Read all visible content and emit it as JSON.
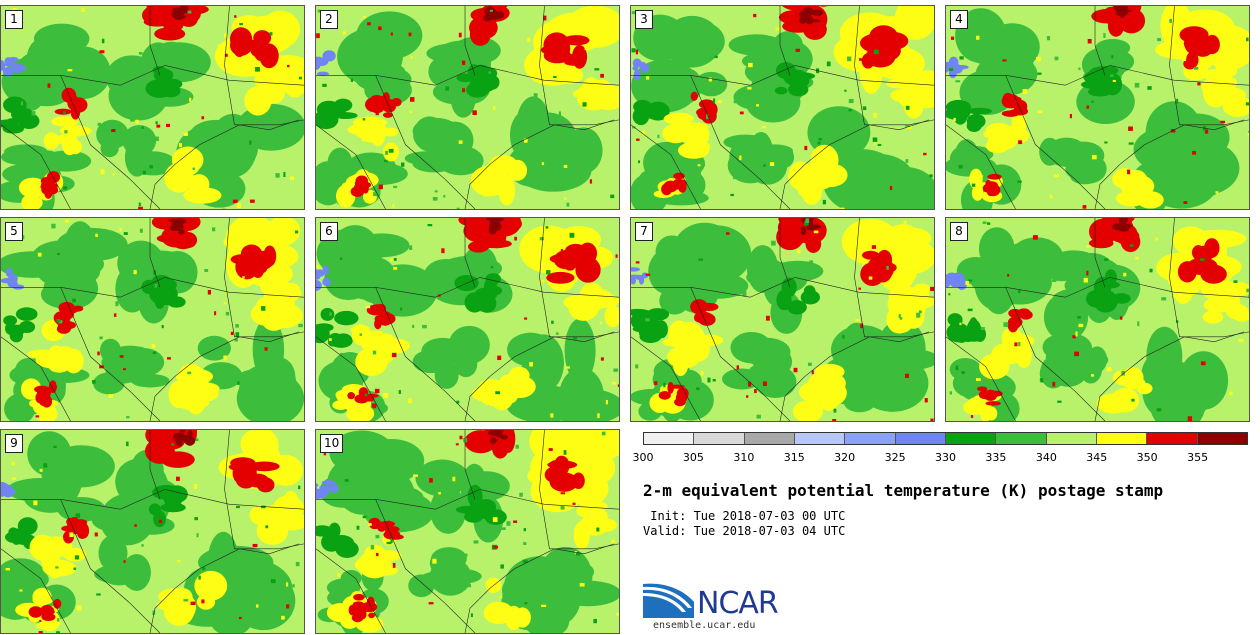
{
  "panels": [
    {
      "label": "1"
    },
    {
      "label": "2"
    },
    {
      "label": "3"
    },
    {
      "label": "4"
    },
    {
      "label": "5"
    },
    {
      "label": "6"
    },
    {
      "label": "7"
    },
    {
      "label": "8"
    },
    {
      "label": "9"
    },
    {
      "label": "10"
    }
  ],
  "colorbar": {
    "colors": [
      "#f0f0f0",
      "#d9d9d9",
      "#a8a8a8",
      "#b7c8f7",
      "#8aa2f5",
      "#6f86f2",
      "#08a212",
      "#3cbd3c",
      "#b8f26a",
      "#fefe14",
      "#e40000",
      "#8c0000"
    ],
    "ticks": [
      "300",
      "305",
      "310",
      "315",
      "320",
      "325",
      "330",
      "335",
      "340",
      "345",
      "350",
      "355"
    ]
  },
  "title": "2-m equivalent potential temperature (K) postage stamp",
  "init": " Init: Tue 2018-07-03 00 UTC",
  "valid": "Valid: Tue 2018-07-03 04 UTC",
  "logo": {
    "text": "NCAR",
    "url": "ensemble.ucar.edu"
  }
}
